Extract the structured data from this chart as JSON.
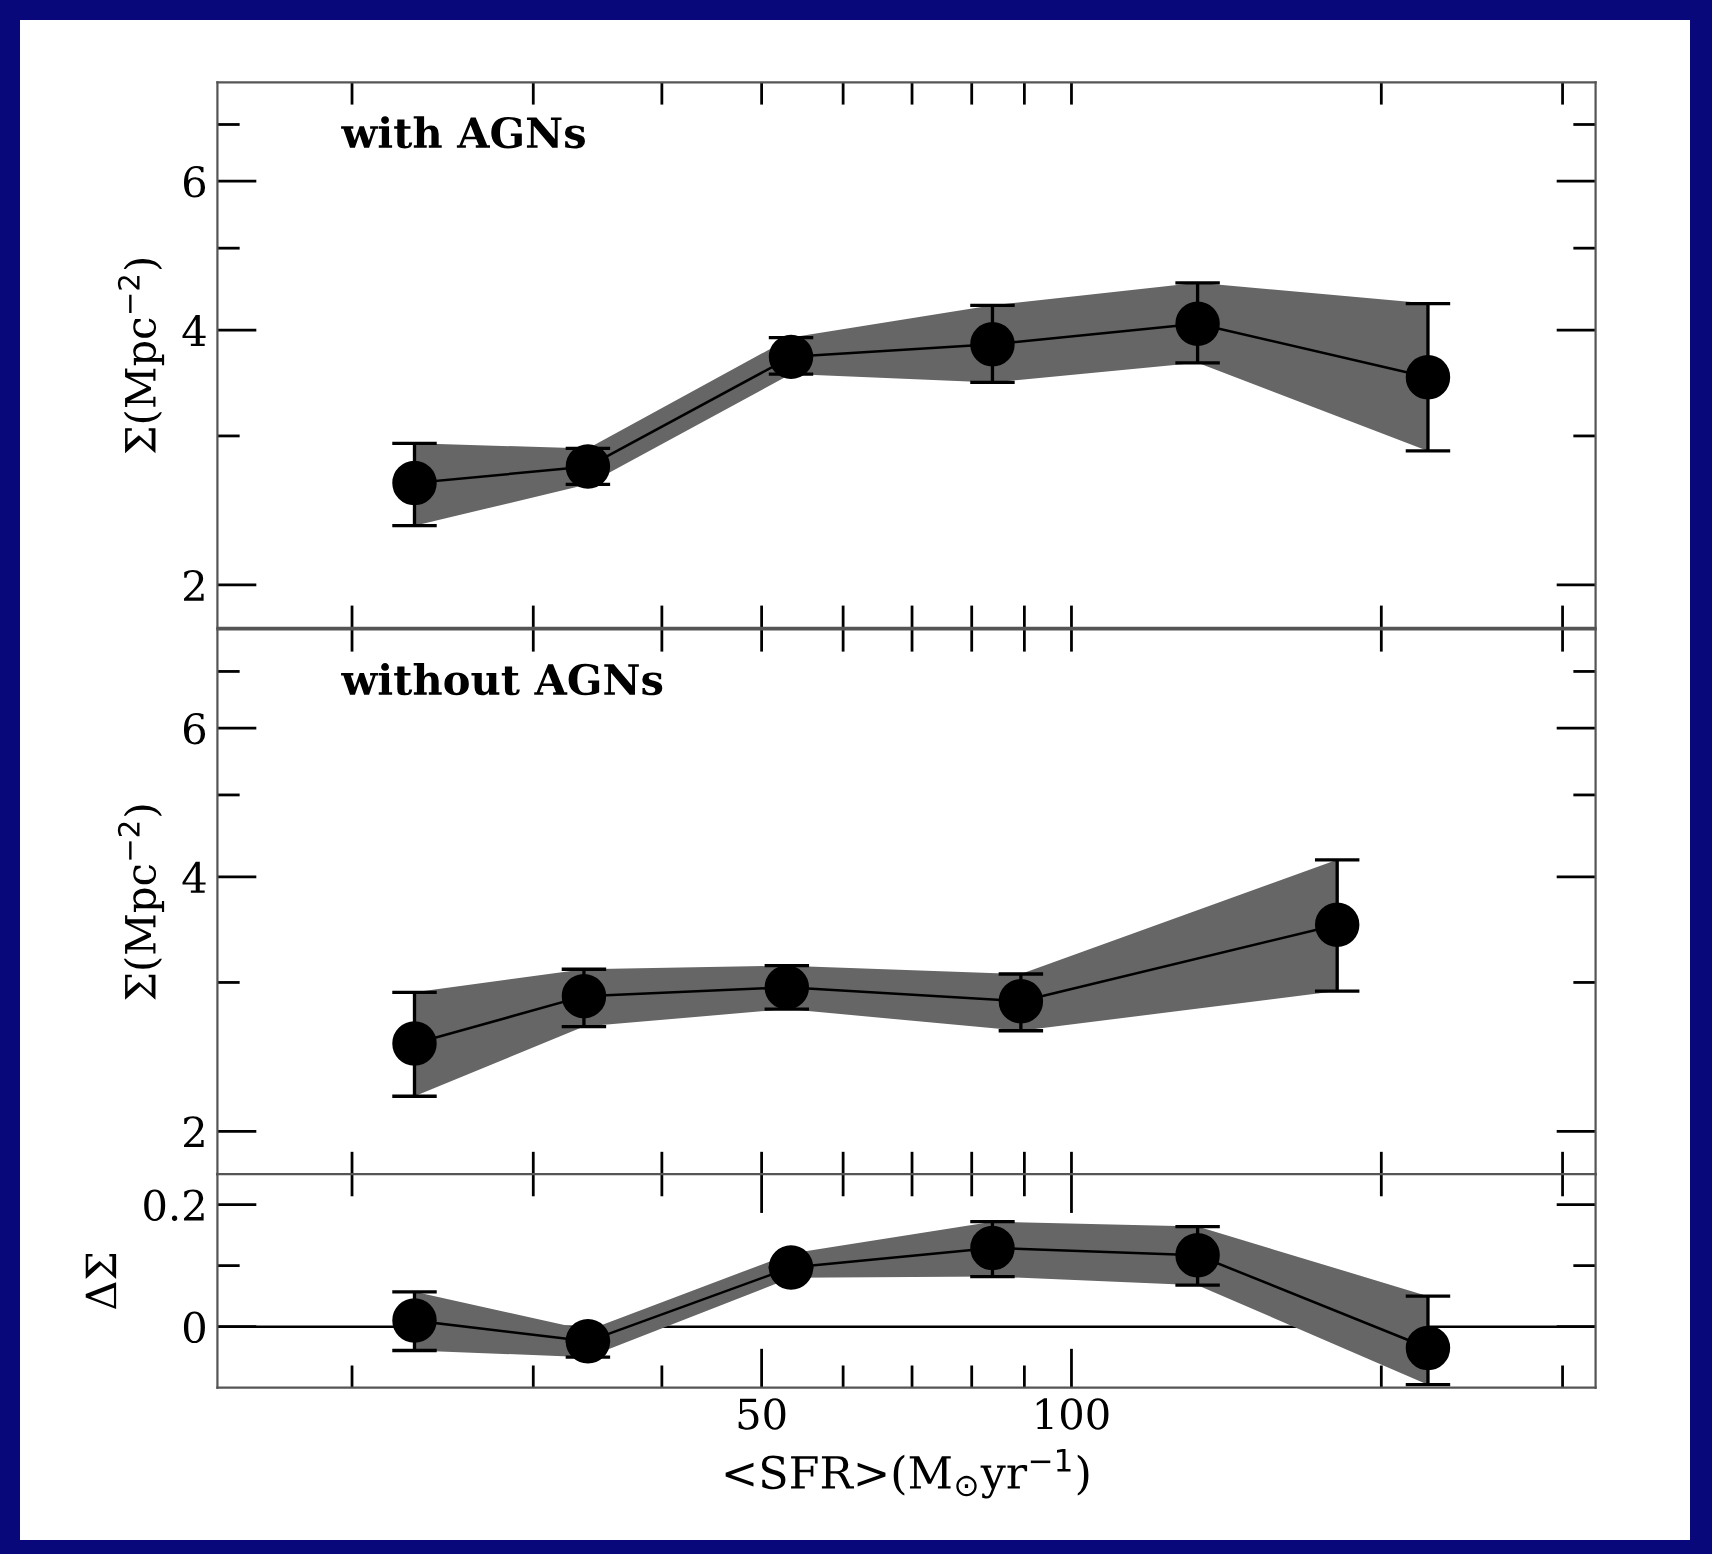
{
  "chart_data": [
    {
      "type": "line",
      "ylabel": "Σ(Mpc$^{−2}$)",
      "annotations": [
        "with AGNs"
      ],
      "log": "xy",
      "marker": "circle",
      "line_style": "solid",
      "grid": false,
      "legend": false,
      "tick_labels": "y",
      "xlim": [
        14.8,
        323
      ],
      "ylim": [
        1.78,
        7.85
      ],
      "xticks": [
        {
          "value": 20,
          "label": null
        },
        {
          "value": 30,
          "label": null
        },
        {
          "value": 40,
          "label": null
        },
        {
          "value": 50,
          "label": null
        },
        {
          "value": 60,
          "label": null
        },
        {
          "value": 70,
          "label": null
        },
        {
          "value": 80,
          "label": null
        },
        {
          "value": 90,
          "label": null
        },
        {
          "value": 100,
          "label": null
        },
        {
          "value": 200,
          "label": null
        },
        {
          "value": 300,
          "label": null
        }
      ],
      "yticks": [
        2,
        {
          "value": 3,
          "label": null
        },
        4,
        {
          "value": 5,
          "label": null
        },
        6,
        {
          "value": 7,
          "label": null
        }
      ],
      "series": [
        {
          "color": "#000000",
          "x": [
            23.0,
            33.9,
            53.4,
            83.8,
            132.6,
            222
          ],
          "values": [
            2.64,
            2.76,
            3.72,
            3.85,
            4.07,
            3.52
          ],
          "lower": [
            2.35,
            2.63,
            3.55,
            3.47,
            3.66,
            2.88
          ],
          "upper": [
            2.94,
            2.9,
            3.92,
            4.28,
            4.55,
            4.3
          ],
          "errors": [
            [
              2.35,
              2.94
            ],
            [
              2.63,
              2.9
            ],
            [
              3.55,
              3.92
            ],
            [
              3.47,
              4.28
            ],
            [
              3.66,
              4.55
            ],
            [
              2.88,
              4.3
            ]
          ]
        }
      ]
    },
    {
      "type": "line",
      "ylabel": "Σ(Mpc$^{−2}$)",
      "annotations": [
        "without AGNs"
      ],
      "log": "xy",
      "marker": "circle",
      "line_style": "solid",
      "grid": false,
      "legend": false,
      "tick_labels": "y",
      "xlim": [
        14.8,
        323
      ],
      "ylim": [
        1.78,
        7.85
      ],
      "xticks": [
        {
          "value": 20,
          "label": null
        },
        {
          "value": 30,
          "label": null
        },
        {
          "value": 40,
          "label": null
        },
        {
          "value": 50,
          "label": null
        },
        {
          "value": 60,
          "label": null
        },
        {
          "value": 70,
          "label": null
        },
        {
          "value": 80,
          "label": null
        },
        {
          "value": 90,
          "label": null
        },
        {
          "value": 100,
          "label": null
        },
        {
          "value": 200,
          "label": null
        },
        {
          "value": 300,
          "label": null
        }
      ],
      "yticks": [
        2,
        {
          "value": 3,
          "label": null
        },
        4,
        {
          "value": 5,
          "label": null
        },
        6,
        {
          "value": 7,
          "label": null
        }
      ],
      "series": [
        {
          "color": "#000000",
          "x": [
            23.0,
            33.6,
            52.9,
            89.3,
            181.2
          ],
          "values": [
            2.54,
            2.89,
            2.96,
            2.85,
            3.51
          ],
          "lower": [
            2.2,
            2.66,
            2.79,
            2.63,
            2.93
          ],
          "upper": [
            2.92,
            3.11,
            3.14,
            3.07,
            4.19
          ],
          "errors": [
            [
              2.2,
              2.92
            ],
            [
              2.66,
              3.11
            ],
            [
              2.79,
              3.14
            ],
            [
              2.63,
              3.07
            ],
            [
              2.93,
              4.19
            ]
          ]
        }
      ]
    },
    {
      "type": "line",
      "xlabel": "<SFR>(M$_{⊙}$yr$^{−1}$)",
      "ylabel": "ΔΣ",
      "log": "x",
      "marker": "circle",
      "line_style": "solid",
      "grid": false,
      "legend": false,
      "xlim": [
        14.8,
        323
      ],
      "ylim": [
        -0.1,
        0.25
      ],
      "xticks": [
        {
          "value": 20,
          "label": null
        },
        {
          "value": 30,
          "label": null
        },
        {
          "value": 40,
          "label": null
        },
        50,
        {
          "value": 60,
          "label": null
        },
        {
          "value": 70,
          "label": null
        },
        {
          "value": 80,
          "label": null
        },
        {
          "value": 90,
          "label": null
        },
        100,
        {
          "value": 200,
          "label": null
        },
        {
          "value": 300,
          "label": null
        }
      ],
      "yticks": [
        0,
        {
          "value": 0.1,
          "label": null
        },
        0.2
      ],
      "ref_lines": [
        {
          "axis": "y",
          "value": 0,
          "color": "#000000",
          "line_style": "solid"
        }
      ],
      "series": [
        {
          "color": "#000000",
          "x": [
            23.0,
            33.9,
            53.4,
            83.8,
            132.6,
            222
          ],
          "values": [
            0.01,
            -0.024,
            0.097,
            0.129,
            0.117,
            -0.035
          ],
          "lower": [
            -0.039,
            -0.05,
            0.08,
            0.082,
            0.068,
            -0.095
          ],
          "upper": [
            0.057,
            -0.006,
            0.12,
            0.172,
            0.164,
            0.05
          ],
          "errors": [
            [
              -0.039,
              0.057
            ],
            [
              -0.05,
              -0.024
            ],
            null,
            [
              0.082,
              0.172
            ],
            [
              0.068,
              0.164
            ],
            [
              -0.095,
              0.05
            ]
          ]
        }
      ]
    }
  ]
}
